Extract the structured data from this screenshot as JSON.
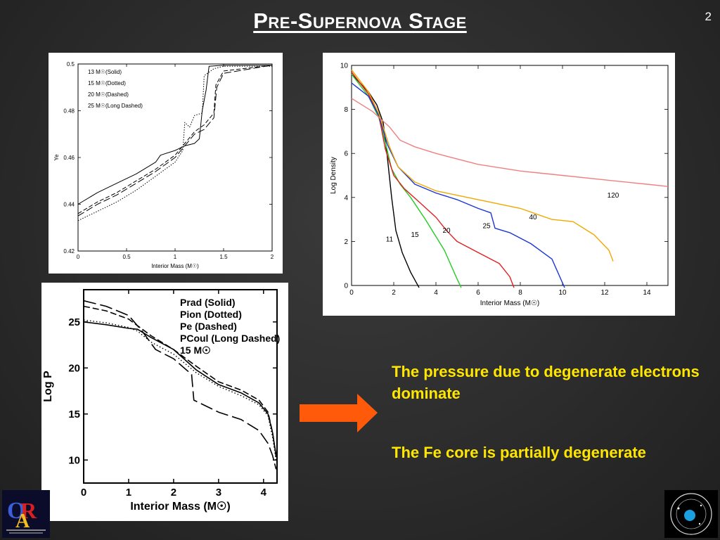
{
  "slide": {
    "title": "Pre-Supernova Stage",
    "page_number": "2"
  },
  "notes": {
    "line1": "The pressure due to degenerate electrons dominate",
    "line2": "The Fe core is partially degenerate"
  },
  "logos": {
    "left": "OAR-logo",
    "right": "INAF-logo"
  },
  "chart_data": [
    {
      "type": "line",
      "xlabel": "Interior Mass (M☉)",
      "ylabel": "Ye",
      "xlim": [
        0,
        2
      ],
      "ylim": [
        0.42,
        0.5
      ],
      "xticks": [
        "0",
        "0.5",
        "1",
        "1.5",
        "2"
      ],
      "yticks": [
        "0.42",
        "0.44",
        "0.46",
        "0.48",
        "0.5"
      ],
      "legend": [
        "13 M☉(Solid)",
        "15 M☉(Dotted)",
        "20 M☉(Dashed)",
        "25 M☉(Long Dashed)"
      ],
      "legend_position": "top-left",
      "series": [
        {
          "name": "13 M☉(Solid)",
          "x": [
            0,
            0.2,
            0.4,
            0.6,
            0.8,
            0.85,
            1.0,
            1.1,
            1.2,
            1.25,
            1.28,
            1.32,
            1.35,
            1.5,
            2.0
          ],
          "y": [
            0.44,
            0.445,
            0.449,
            0.453,
            0.458,
            0.461,
            0.463,
            0.465,
            0.466,
            0.468,
            0.48,
            0.489,
            0.499,
            0.4995,
            0.4995
          ]
        },
        {
          "name": "15 M☉(Dotted)",
          "x": [
            0,
            0.2,
            0.4,
            0.6,
            0.8,
            1.0,
            1.08,
            1.1,
            1.15,
            1.2,
            1.28,
            1.3,
            1.4,
            1.5,
            2.0
          ],
          "y": [
            0.433,
            0.437,
            0.441,
            0.446,
            0.452,
            0.458,
            0.463,
            0.475,
            0.473,
            0.478,
            0.479,
            0.495,
            0.498,
            0.499,
            0.499
          ]
        },
        {
          "name": "20 M☉(Dashed)",
          "x": [
            0,
            0.2,
            0.4,
            0.6,
            0.8,
            1.0,
            1.1,
            1.2,
            1.3,
            1.4,
            1.42,
            1.5,
            2.0
          ],
          "y": [
            0.436,
            0.441,
            0.445,
            0.45,
            0.455,
            0.461,
            0.466,
            0.471,
            0.474,
            0.479,
            0.491,
            0.497,
            0.4995
          ]
        },
        {
          "name": "25 M☉(Long Dashed)",
          "x": [
            0,
            0.2,
            0.4,
            0.6,
            0.8,
            1.0,
            1.1,
            1.2,
            1.3,
            1.4,
            1.43,
            1.5,
            2.0
          ],
          "y": [
            0.435,
            0.44,
            0.444,
            0.449,
            0.454,
            0.46,
            0.465,
            0.47,
            0.472,
            0.477,
            0.49,
            0.496,
            0.4995
          ]
        }
      ]
    },
    {
      "type": "line",
      "xlabel": "Interior Mass (M☉)",
      "ylabel": "Log Density",
      "xlim": [
        0,
        15
      ],
      "ylim": [
        0,
        10
      ],
      "xticks": [
        "0",
        "2",
        "4",
        "6",
        "8",
        "10",
        "12",
        "14"
      ],
      "yticks": [
        "0",
        "2",
        "4",
        "6",
        "8",
        "10"
      ],
      "series": [
        {
          "name": "11",
          "color": "#000000",
          "x": [
            0,
            0.8,
            1.2,
            1.5,
            1.7,
            1.9,
            2.1,
            2.4,
            2.8,
            3.2
          ],
          "y": [
            9.6,
            8.8,
            8.2,
            7.4,
            5.8,
            4.0,
            2.5,
            1.5,
            0.6,
            -0.1
          ]
        },
        {
          "name": "15",
          "color": "#22cc22",
          "x": [
            0,
            0.8,
            1.3,
            1.6,
            1.9,
            2.3,
            2.8,
            3.5,
            4.4,
            5.0,
            5.2
          ],
          "y": [
            9.6,
            8.6,
            7.6,
            6.5,
            5.3,
            4.6,
            4.0,
            3.0,
            1.6,
            0.3,
            -0.1
          ]
        },
        {
          "name": "20",
          "color": "#e02020",
          "x": [
            0,
            0.8,
            1.3,
            1.6,
            2.0,
            2.5,
            3.2,
            4.0,
            4.5,
            5.0,
            6.0,
            7.0,
            7.5,
            7.7
          ],
          "y": [
            9.7,
            8.7,
            7.7,
            6.2,
            5.0,
            4.4,
            3.8,
            3.1,
            2.5,
            2.0,
            1.5,
            1.0,
            0.4,
            -0.1
          ]
        },
        {
          "name": "25",
          "color": "#1a35d6",
          "x": [
            0,
            0.8,
            1.3,
            1.7,
            2.2,
            3.0,
            4.0,
            5.0,
            6.0,
            6.6,
            6.8,
            7.5,
            8.5,
            9.5,
            10.1
          ],
          "y": [
            9.2,
            8.6,
            7.7,
            6.4,
            5.4,
            4.6,
            4.2,
            3.9,
            3.5,
            3.3,
            2.6,
            2.4,
            1.9,
            1.2,
            -0.1
          ]
        },
        {
          "name": "40",
          "color": "#f0a800",
          "x": [
            0,
            0.8,
            1.3,
            1.8,
            2.2,
            3.0,
            4.0,
            5.0,
            6.5,
            8.0,
            9.5,
            10.5,
            11.5,
            12.2,
            12.4
          ],
          "y": [
            9.8,
            8.8,
            7.8,
            6.3,
            5.4,
            4.7,
            4.3,
            4.1,
            3.8,
            3.5,
            3.0,
            2.9,
            2.3,
            1.6,
            1.1
          ]
        },
        {
          "name": "120",
          "color": "#f08080",
          "x": [
            0,
            1.0,
            1.8,
            2.3,
            3.0,
            4.0,
            6.0,
            8.0,
            10.0,
            12.0,
            14.0,
            15.0
          ],
          "y": [
            8.5,
            7.9,
            7.2,
            6.6,
            6.3,
            6.0,
            5.5,
            5.2,
            5.0,
            4.8,
            4.6,
            4.5
          ]
        }
      ]
    },
    {
      "type": "line",
      "xlabel": "Interior Mass (M☉)",
      "ylabel": "Log P",
      "xlim": [
        0,
        4.3
      ],
      "ylim": [
        7.5,
        28.5
      ],
      "xticks": [
        "0",
        "1",
        "2",
        "3",
        "4"
      ],
      "yticks": [
        "10",
        "15",
        "20",
        "25"
      ],
      "legend": [
        "Prad (Solid)",
        "Pion (Dotted)",
        "Pe (Dashed)",
        "PCoul (Long Dashed)",
        "15 M☉"
      ],
      "legend_position": "top-right",
      "series": [
        {
          "name": "Prad (Solid)",
          "x": [
            0,
            0.5,
            1.0,
            1.2,
            1.5,
            2.0,
            2.5,
            3.0,
            3.5,
            3.9,
            4.1,
            4.2,
            4.28
          ],
          "y": [
            25.0,
            24.7,
            24.3,
            24.2,
            23.3,
            22.0,
            19.8,
            18.2,
            17.3,
            16.2,
            15.0,
            13.0,
            10.5
          ]
        },
        {
          "name": "Pion (Dotted)",
          "x": [
            0,
            0.5,
            1.0,
            1.2,
            1.5,
            2.0,
            2.5,
            3.0,
            3.5,
            3.9,
            4.1,
            4.2,
            4.28
          ],
          "y": [
            25.2,
            24.9,
            24.4,
            24.0,
            22.8,
            21.5,
            19.5,
            18.0,
            17.0,
            16.0,
            14.8,
            12.5,
            10.0
          ]
        },
        {
          "name": "Pe (Dashed)",
          "x": [
            0,
            0.5,
            1.0,
            1.5,
            2.0,
            2.5,
            3.0,
            3.5,
            3.9,
            4.1,
            4.2,
            4.28
          ],
          "y": [
            26.7,
            26.2,
            25.3,
            23.5,
            22.0,
            20.2,
            18.5,
            17.6,
            16.5,
            15.2,
            13.0,
            10.3
          ]
        },
        {
          "name": "PCoul (Long Dashed)",
          "x": [
            0,
            0.5,
            1.0,
            1.3,
            1.6,
            2.0,
            2.4,
            2.45,
            3.0,
            3.5,
            3.9,
            4.1,
            4.2,
            4.28
          ],
          "y": [
            27.3,
            26.7,
            25.7,
            24.0,
            22.0,
            21.0,
            19.3,
            16.5,
            15.2,
            14.4,
            13.2,
            11.8,
            10.5,
            9.0
          ]
        }
      ]
    }
  ]
}
